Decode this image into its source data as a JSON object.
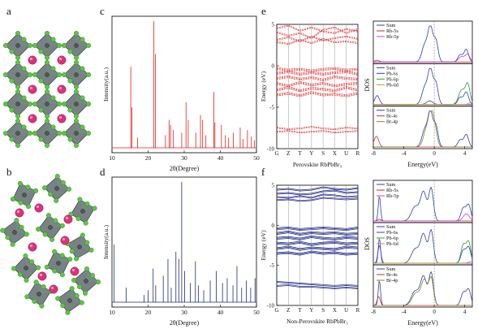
{
  "figure": {
    "panels": {
      "a": "a",
      "b": "b",
      "c": "c",
      "d": "d",
      "e": "e",
      "f": "f"
    }
  },
  "colors": {
    "xrd_c": "#e02020",
    "xrd_d": "#1f2a7a",
    "band_e": "#e03030",
    "band_f": "#1f2a8a",
    "sum": "#2b3fb8",
    "rb5s": "#cc2a2a",
    "rb5p": "#d43ad4",
    "pb6s": "#3a3ad4",
    "pb6p": "#2aa02a",
    "pb6d": "#d48a20",
    "br4s": "#cc2a2a",
    "br4p": "#8a8a20",
    "pb_atom": "#e0307a",
    "br_atom": "#5ac840",
    "octa": "#4a5a5a"
  },
  "chart_data": [
    {
      "type": "line",
      "panel": "c",
      "xlabel": "2θ(Degree)",
      "ylabel": "Intensity(a.u.)",
      "xlim": [
        10,
        50
      ],
      "xticks": [
        10,
        20,
        30,
        40,
        50
      ],
      "peaks": [
        {
          "x": 15.2,
          "y": 0.64
        },
        {
          "x": 15.5,
          "y": 0.32
        },
        {
          "x": 17.1,
          "y": 0.08
        },
        {
          "x": 21.6,
          "y": 1.0
        },
        {
          "x": 22.0,
          "y": 0.74
        },
        {
          "x": 24.8,
          "y": 0.1
        },
        {
          "x": 25.8,
          "y": 0.22
        },
        {
          "x": 26.2,
          "y": 0.18
        },
        {
          "x": 27.0,
          "y": 0.14
        },
        {
          "x": 29.3,
          "y": 0.12
        },
        {
          "x": 30.5,
          "y": 0.36
        },
        {
          "x": 31.1,
          "y": 0.22
        },
        {
          "x": 33.2,
          "y": 0.12
        },
        {
          "x": 34.5,
          "y": 0.26
        },
        {
          "x": 35.1,
          "y": 0.22
        },
        {
          "x": 36.0,
          "y": 0.1
        },
        {
          "x": 38.2,
          "y": 0.44
        },
        {
          "x": 38.5,
          "y": 0.2
        },
        {
          "x": 40.3,
          "y": 0.18
        },
        {
          "x": 41.4,
          "y": 0.1
        },
        {
          "x": 42.3,
          "y": 0.08
        },
        {
          "x": 43.6,
          "y": 0.12
        },
        {
          "x": 45.5,
          "y": 0.16
        },
        {
          "x": 46.3,
          "y": 0.07
        },
        {
          "x": 47.5,
          "y": 0.14
        },
        {
          "x": 48.6,
          "y": 0.09
        },
        {
          "x": 49.4,
          "y": 0.06
        }
      ]
    },
    {
      "type": "line",
      "panel": "d",
      "xlabel": "2θ(Degree)",
      "ylabel": "Intensity(a.u.)",
      "xlim": [
        10,
        50
      ],
      "xticks": [
        10,
        20,
        30,
        40,
        50
      ],
      "peaks": [
        {
          "x": 10.6,
          "y": 0.48
        },
        {
          "x": 13.9,
          "y": 0.12
        },
        {
          "x": 18.9,
          "y": 0.06
        },
        {
          "x": 20.0,
          "y": 0.1
        },
        {
          "x": 21.4,
          "y": 0.28
        },
        {
          "x": 22.1,
          "y": 0.14
        },
        {
          "x": 24.2,
          "y": 0.22
        },
        {
          "x": 25.5,
          "y": 0.36
        },
        {
          "x": 26.4,
          "y": 0.12
        },
        {
          "x": 27.7,
          "y": 0.42
        },
        {
          "x": 28.5,
          "y": 0.36
        },
        {
          "x": 29.3,
          "y": 1.0
        },
        {
          "x": 30.1,
          "y": 0.26
        },
        {
          "x": 31.7,
          "y": 0.16
        },
        {
          "x": 33.1,
          "y": 0.34
        },
        {
          "x": 33.9,
          "y": 0.14
        },
        {
          "x": 35.4,
          "y": 0.1
        },
        {
          "x": 37.2,
          "y": 0.18
        },
        {
          "x": 38.9,
          "y": 0.26
        },
        {
          "x": 40.6,
          "y": 0.16
        },
        {
          "x": 41.9,
          "y": 0.2
        },
        {
          "x": 43.5,
          "y": 0.14
        },
        {
          "x": 44.6,
          "y": 0.3
        },
        {
          "x": 45.9,
          "y": 0.12
        },
        {
          "x": 47.2,
          "y": 0.18
        },
        {
          "x": 48.4,
          "y": 0.12
        },
        {
          "x": 49.6,
          "y": 0.2
        }
      ]
    },
    {
      "type": "line",
      "panel": "e",
      "title": "Perovskite RbPbBr₃",
      "ylabel": "Energy (eV)",
      "ylim": [
        -10,
        5
      ],
      "yticks": [
        5,
        0,
        -5,
        -10
      ],
      "kpoints": [
        "G",
        "Z",
        "T",
        "Y",
        "S",
        "X",
        "U",
        "R"
      ],
      "conduction_bands": [
        [
          4.6,
          4.9,
          4.3,
          4.7,
          4.2,
          4.0,
          4.5,
          4.2
        ],
        [
          4.1,
          3.7,
          4.0,
          3.4,
          4.4,
          4.7,
          4.0,
          4.5
        ],
        [
          3.2,
          3.5,
          3.0,
          3.6,
          3.1,
          3.4,
          3.6,
          3.3
        ],
        [
          2.9,
          2.7,
          3.2,
          2.8,
          3.3,
          2.9,
          3.0,
          2.8
        ]
      ],
      "valence_bands": [
        [
          -0.2,
          -0.4,
          -0.3,
          -0.5,
          -0.3,
          -0.2,
          -0.4,
          -0.3
        ],
        [
          -0.8,
          -0.6,
          -0.9,
          -0.7,
          -0.9,
          -0.7,
          -0.6,
          -0.9
        ],
        [
          -1.4,
          -1.2,
          -1.5,
          -1.3,
          -1.6,
          -1.2,
          -1.4,
          -1.5
        ],
        [
          -2.0,
          -2.3,
          -1.9,
          -2.2,
          -2.0,
          -2.3,
          -2.1,
          -2.0
        ],
        [
          -2.8,
          -2.5,
          -2.9,
          -2.6,
          -2.7,
          -2.9,
          -2.5,
          -2.8
        ],
        [
          -3.4,
          -3.2,
          -3.5,
          -3.1,
          -3.4,
          -3.3,
          -3.5,
          -3.2
        ]
      ],
      "lower_bands": [
        [
          -7.4,
          -7.6,
          -7.5,
          -7.3,
          -7.5,
          -7.6,
          -7.4,
          -7.5
        ],
        [
          -7.9,
          -7.8,
          -8.0,
          -7.9,
          -7.8,
          -8.0,
          -7.9,
          -7.8
        ]
      ]
    },
    {
      "type": "line",
      "panel": "e-dos",
      "xlabel": "Energy(eV)",
      "ylabel": "DOS",
      "xlim": [
        -8,
        5
      ],
      "xticks": [
        -8,
        -4,
        0,
        4
      ],
      "subpanels": [
        {
          "legend": [
            "Sum",
            "Rb-5s",
            "Rb-5p"
          ]
        },
        {
          "legend": [
            "Sum",
            "Pb-6s",
            "Pb-6p",
            "Pb-6d"
          ]
        },
        {
          "legend": [
            "Sum",
            "Br-4s",
            "Br-4p"
          ]
        }
      ]
    },
    {
      "type": "line",
      "panel": "f",
      "title": "Non-Perovskite RbPbBr₃",
      "ylabel": "Energy (eV)",
      "ylim": [
        -10,
        5
      ],
      "yticks": [
        5,
        0,
        -5,
        -10
      ],
      "kpoints": [
        "G",
        "Z",
        "T",
        "Y",
        "S",
        "X",
        "U",
        "R"
      ],
      "conduction_bands": [
        [
          4.5,
          4.6,
          4.4,
          4.5,
          4.8,
          4.6,
          4.5,
          4.7
        ],
        [
          4.0,
          4.1,
          3.9,
          4.0,
          4.3,
          4.4,
          4.1,
          4.2
        ],
        [
          3.6,
          3.5,
          3.7,
          3.5,
          3.9,
          3.8,
          3.6,
          3.7
        ],
        [
          3.2,
          3.3,
          3.1,
          3.2,
          3.5,
          3.4,
          3.3,
          3.4
        ]
      ],
      "valence_bands": [
        [
          -0.3,
          -0.2,
          -0.4,
          -0.3,
          -0.2,
          -0.3,
          -0.4,
          -0.2
        ],
        [
          -0.9,
          -0.7,
          -1.0,
          -0.8,
          -0.9,
          -0.8,
          -1.0,
          -0.9
        ],
        [
          -1.5,
          -1.4,
          -1.6,
          -1.3,
          -1.5,
          -1.6,
          -1.4,
          -1.5
        ],
        [
          -2.1,
          -2.2,
          -2.0,
          -2.3,
          -2.1,
          -2.0,
          -2.2,
          -2.1
        ],
        [
          -2.8,
          -2.6,
          -2.9,
          -2.7,
          -2.8,
          -2.9,
          -2.6,
          -2.7
        ],
        [
          -3.4,
          -3.3,
          -3.5,
          -3.2,
          -3.4,
          -3.3,
          -3.5,
          -3.4
        ]
      ],
      "lower_bands": [
        [
          -7.0,
          -7.1,
          -7.2,
          -7.3,
          -7.4,
          -7.5,
          -7.4,
          -7.5
        ],
        [
          -7.5,
          -7.4,
          -7.6,
          -7.6,
          -7.7,
          -7.8,
          -7.7,
          -7.8
        ]
      ]
    },
    {
      "type": "line",
      "panel": "f-dos",
      "xlabel": "Energy(eV)",
      "ylabel": "DOS",
      "xlim": [
        -8,
        5
      ],
      "xticks": [
        -8,
        -4,
        0,
        4
      ],
      "subpanels": [
        {
          "legend": [
            "Sum",
            "Rb-5s",
            "Rb-5p"
          ]
        },
        {
          "legend": [
            "Sum",
            "Pb-6s",
            "Pb-6p",
            "Pb-6d"
          ]
        },
        {
          "legend": [
            "Sum",
            "Br-4s",
            "Br-4p"
          ]
        }
      ]
    }
  ]
}
